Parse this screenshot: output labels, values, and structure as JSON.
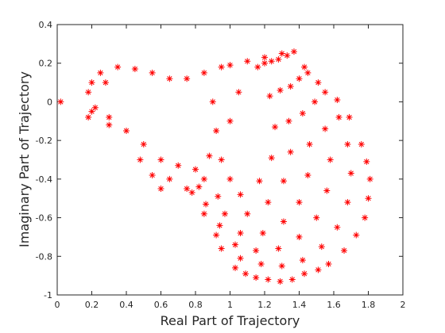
{
  "chart_data": {
    "type": "scatter",
    "xlabel": "Real Part of Trajectory",
    "ylabel": "Imaginary Part of Trajectory",
    "color": "#ff0000",
    "marker": "asterisk",
    "xlim": [
      0,
      2
    ],
    "ylim": [
      -1,
      0.4
    ],
    "xticks": [
      0,
      0.2,
      0.4,
      0.6,
      0.8,
      1,
      1.2,
      1.4,
      1.6,
      1.8,
      2
    ],
    "yticks": [
      -1,
      -0.8,
      -0.6,
      -0.4,
      -0.2,
      0,
      0.2,
      0.4
    ],
    "x": [
      0.02,
      1.37,
      1.3,
      1.2,
      1.1,
      1.0,
      1.43,
      1.51,
      1.62,
      1.69,
      1.76,
      1.79,
      1.81,
      1.8,
      1.78,
      1.73,
      1.66,
      1.57,
      1.51,
      1.43,
      1.36,
      1.29,
      1.22,
      1.15,
      1.09,
      1.03,
      1.33,
      1.45,
      1.55,
      1.63,
      1.68,
      1.7,
      1.68,
      1.62,
      1.53,
      1.42,
      1.3,
      1.18,
      1.06,
      0.95,
      1.28,
      1.4,
      1.49,
      1.55,
      1.58,
      1.56,
      1.5,
      1.4,
      1.28,
      1.15,
      1.03,
      0.92,
      1.24,
      1.35,
      1.42,
      1.46,
      1.45,
      1.4,
      1.31,
      1.19,
      1.06,
      0.94,
      0.85,
      1.2,
      1.29,
      1.34,
      1.35,
      1.31,
      1.22,
      1.1,
      0.97,
      0.86,
      0.78,
      1.16,
      1.23,
      1.26,
      1.24,
      1.17,
      1.06,
      0.93,
      0.82,
      0.2,
      0.2,
      0.25,
      0.35,
      0.45,
      0.55,
      0.65,
      0.75,
      0.85,
      0.95,
      0.9,
      0.92,
      0.88,
      0.8,
      0.7,
      0.6,
      0.5,
      0.4,
      0.3,
      0.22,
      0.18,
      0.18,
      0.28,
      0.3,
      0.65,
      0.75,
      0.6,
      0.55,
      0.48,
      0.95,
      1.0,
      1.05,
      1.0,
      0.85
    ],
    "y": [
      0,
      0.26,
      0.25,
      0.23,
      0.21,
      0.19,
      0.18,
      0.1,
      0.01,
      -0.08,
      -0.22,
      -0.31,
      -0.4,
      -0.5,
      -0.6,
      -0.69,
      -0.77,
      -0.84,
      -0.87,
      -0.89,
      -0.92,
      -0.93,
      -0.92,
      -0.91,
      -0.89,
      -0.86,
      0.24,
      0.15,
      0.05,
      -0.08,
      -0.22,
      -0.37,
      -0.52,
      -0.65,
      -0.75,
      -0.82,
      -0.85,
      -0.84,
      -0.81,
      -0.76,
      0.22,
      0.12,
      0.0,
      -0.14,
      -0.3,
      -0.46,
      -0.6,
      -0.7,
      -0.76,
      -0.77,
      -0.74,
      -0.69,
      0.21,
      0.08,
      -0.06,
      -0.22,
      -0.38,
      -0.52,
      -0.62,
      -0.68,
      -0.68,
      -0.64,
      -0.58,
      0.2,
      0.06,
      -0.1,
      -0.26,
      -0.41,
      -0.52,
      -0.58,
      -0.58,
      -0.53,
      -0.47,
      0.18,
      0.03,
      -0.13,
      -0.29,
      -0.41,
      -0.48,
      -0.49,
      -0.44,
      0.1,
      -0.05,
      0.15,
      0.18,
      0.17,
      0.15,
      0.12,
      0.12,
      0.15,
      0.18,
      0.0,
      -0.15,
      -0.28,
      -0.35,
      -0.33,
      -0.3,
      -0.22,
      -0.15,
      -0.08,
      -0.03,
      0.05,
      -0.08,
      0.1,
      -0.12,
      -0.4,
      -0.45,
      -0.45,
      -0.38,
      -0.3,
      -0.3,
      -0.1,
      0.05,
      -0.4,
      -0.4
    ]
  }
}
